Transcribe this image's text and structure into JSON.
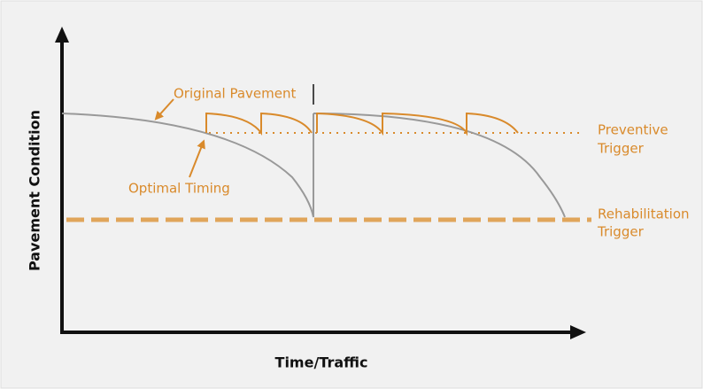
{
  "axes": {
    "x_label": "Time/Traffic",
    "y_label": "Pavement Condition"
  },
  "annotations": {
    "original_pavement": "Original Pavement",
    "optimal_timing": "Optimal Timing"
  },
  "triggers": [
    {
      "lines": [
        "Preventive",
        "Trigger"
      ]
    },
    {
      "lines": [
        "Rehabilitation",
        "Trigger"
      ]
    }
  ]
}
